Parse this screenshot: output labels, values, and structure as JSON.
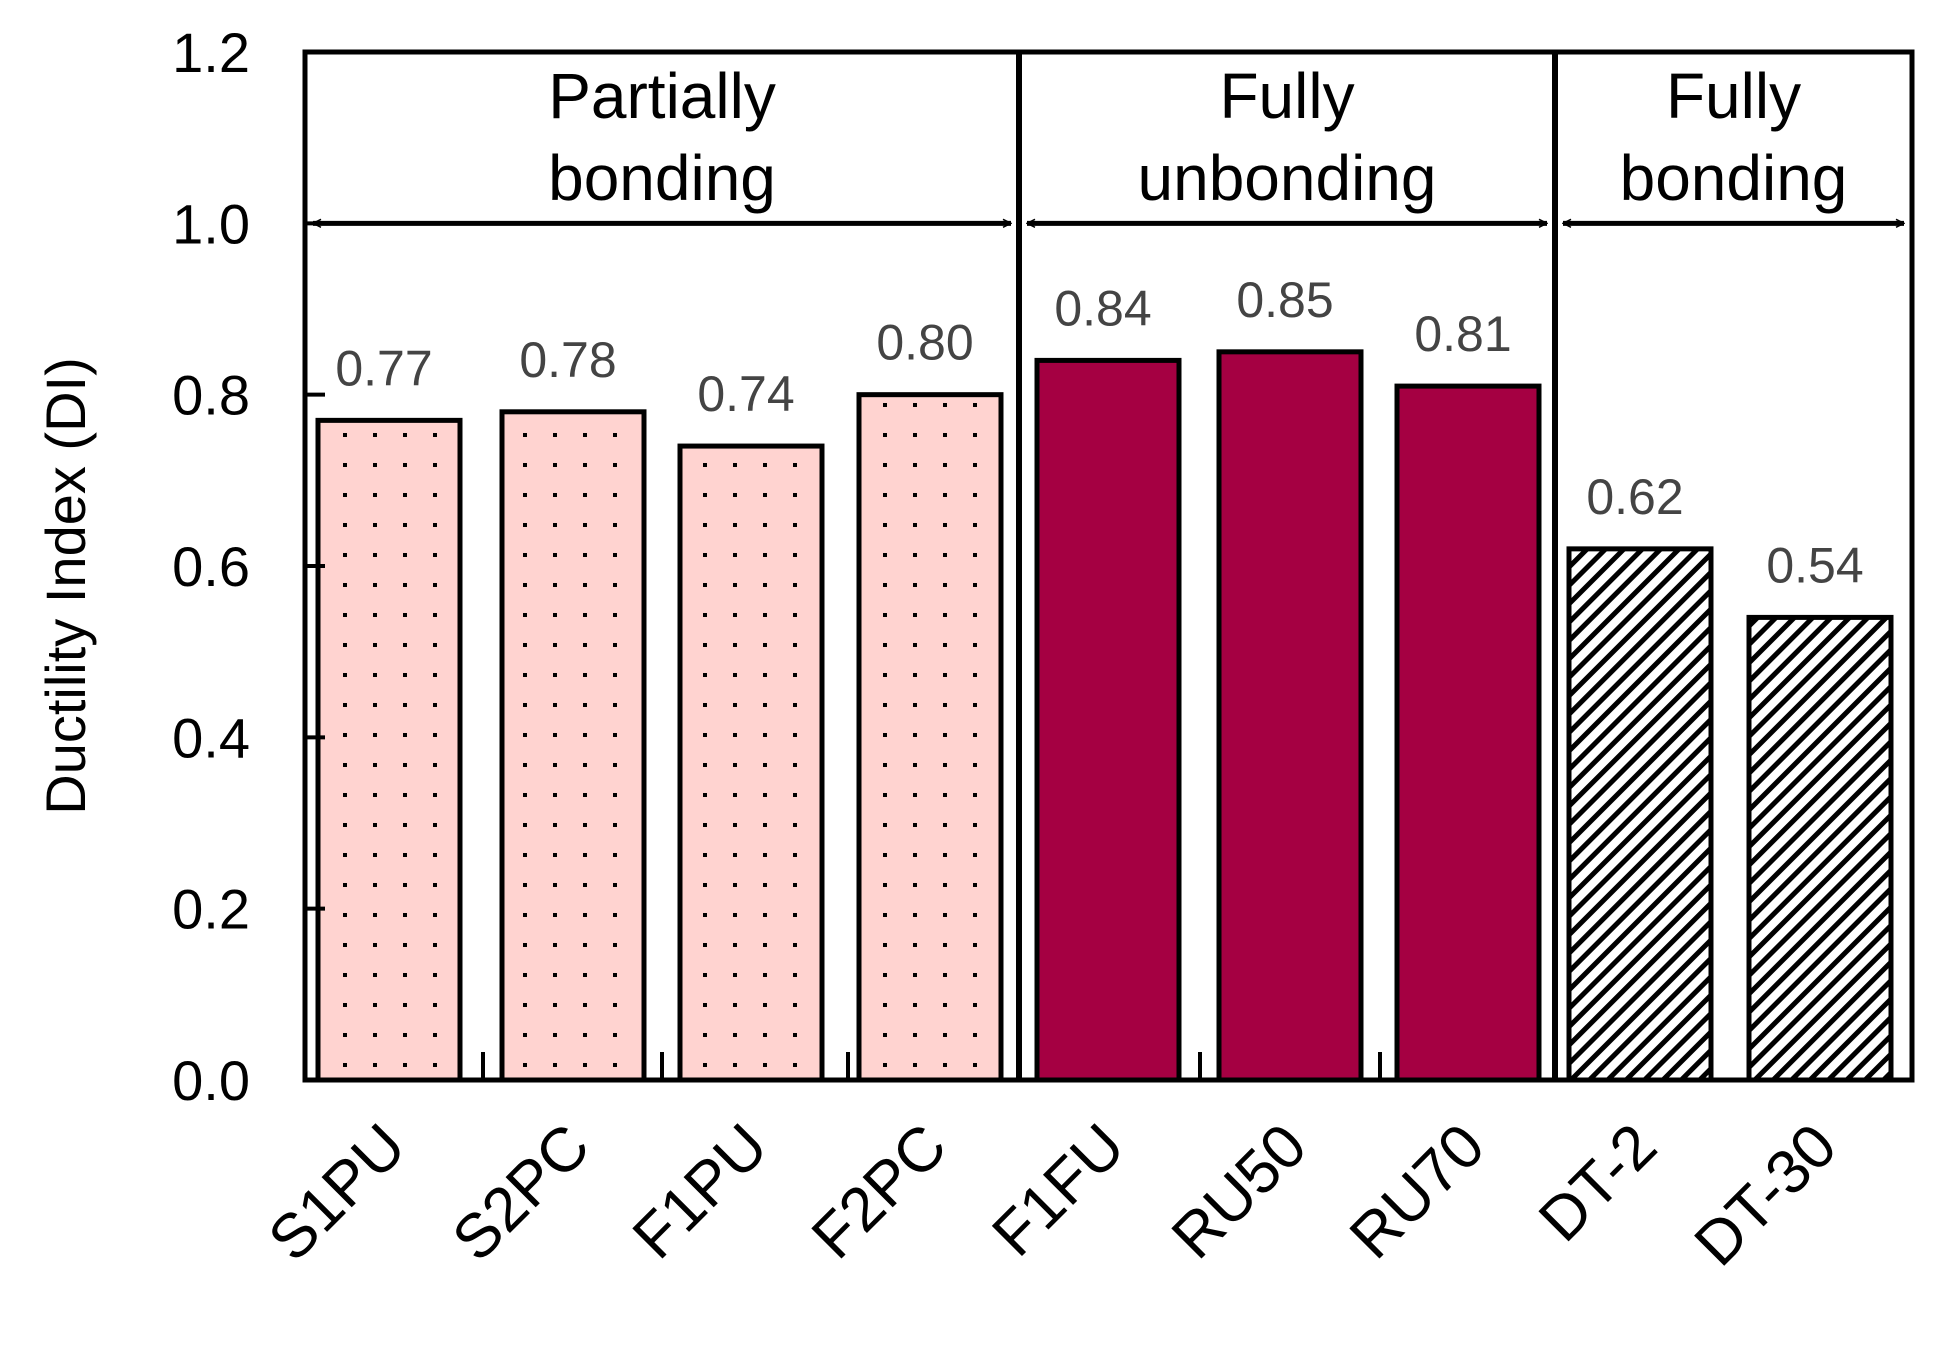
{
  "chart_data": {
    "type": "bar",
    "title": "",
    "xlabel": "",
    "ylabel": "Ductility Index (DI)",
    "ylim": [
      0,
      1.2
    ],
    "yticks": [
      "0.0",
      "0.2",
      "0.4",
      "0.6",
      "0.8",
      "1.0",
      "1.2"
    ],
    "categories": [
      "S1PU",
      "S2PC",
      "F1PU",
      "F2PC",
      "F1FU",
      "RU50",
      "RU70",
      "DT-2",
      "DT-30"
    ],
    "values": [
      0.77,
      0.78,
      0.74,
      0.8,
      0.84,
      0.85,
      0.81,
      0.62,
      0.54
    ],
    "value_labels": [
      "0.77",
      "0.78",
      "0.74",
      "0.80",
      "0.84",
      "0.85",
      "0.81",
      "0.62",
      "0.54"
    ],
    "groups": [
      {
        "name_line1": "Partially",
        "name_line2": "bonding",
        "members": [
          "S1PU",
          "S2PC",
          "F1PU",
          "F2PC"
        ],
        "fill": "dotted-pink"
      },
      {
        "name_line1": "Fully",
        "name_line2": "unbonding",
        "members": [
          "F1FU",
          "RU50",
          "RU70"
        ],
        "fill": "solid-crimson"
      },
      {
        "name_line1": "Fully",
        "name_line2": "bonding",
        "members": [
          "DT-2",
          "DT-30"
        ],
        "fill": "hatched"
      }
    ],
    "colors": {
      "partially_bonding": "#FFD3D0",
      "fully_unbonding": "#A50042",
      "fully_bonding": "#FFFFFF",
      "axis": "#000000"
    },
    "grid": false,
    "legend": "none"
  }
}
